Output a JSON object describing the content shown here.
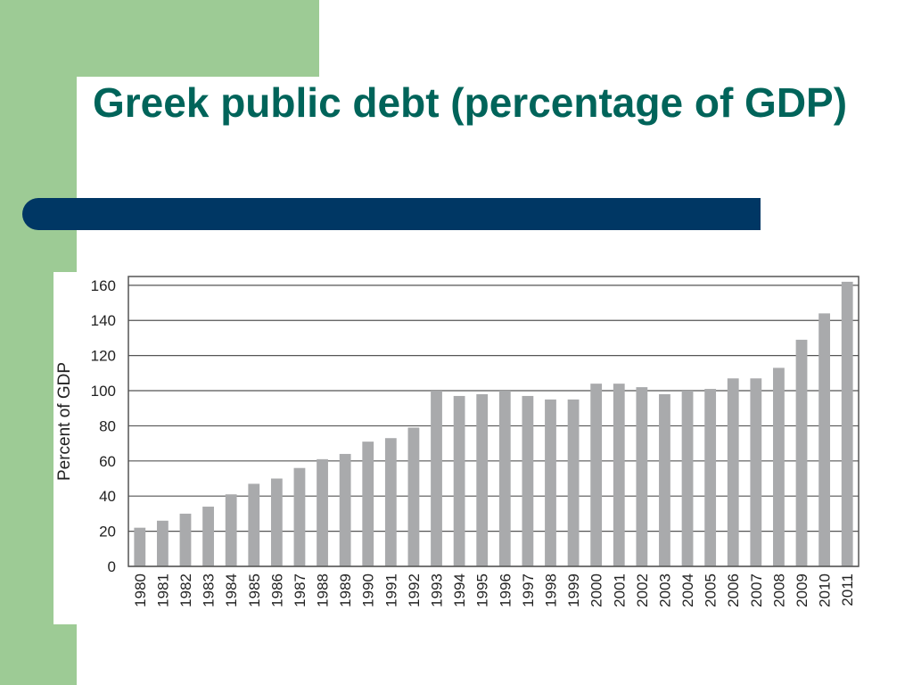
{
  "slide": {
    "title": "Greek public debt (percentage of GDP)",
    "colors": {
      "accent": "#9dcb95",
      "title": "#00645a",
      "bar_blue": "#003764"
    }
  },
  "chart_data": {
    "type": "bar",
    "title": "",
    "xlabel": "",
    "ylabel": "Percent of GDP",
    "ylim": [
      0,
      165
    ],
    "yticks": [
      0,
      20,
      40,
      60,
      80,
      100,
      120,
      140,
      160
    ],
    "grid": true,
    "bar_color": "#a9aaac",
    "categories": [
      "1980",
      "1981",
      "1982",
      "1983",
      "1984",
      "1985",
      "1986",
      "1987",
      "1988",
      "1989",
      "1990",
      "1991",
      "1992",
      "1993",
      "1994",
      "1995",
      "1996",
      "1997",
      "1998",
      "1999",
      "2000",
      "2001",
      "2002",
      "2003",
      "2004",
      "2005",
      "2006",
      "2007",
      "2008",
      "2009",
      "2010",
      "2011"
    ],
    "values": [
      22,
      26,
      30,
      34,
      41,
      47,
      50,
      56,
      61,
      64,
      71,
      73,
      79,
      100,
      97,
      98,
      100,
      97,
      95,
      95,
      104,
      104,
      102,
      98,
      100,
      101,
      107,
      107,
      113,
      129,
      144,
      162
    ]
  }
}
